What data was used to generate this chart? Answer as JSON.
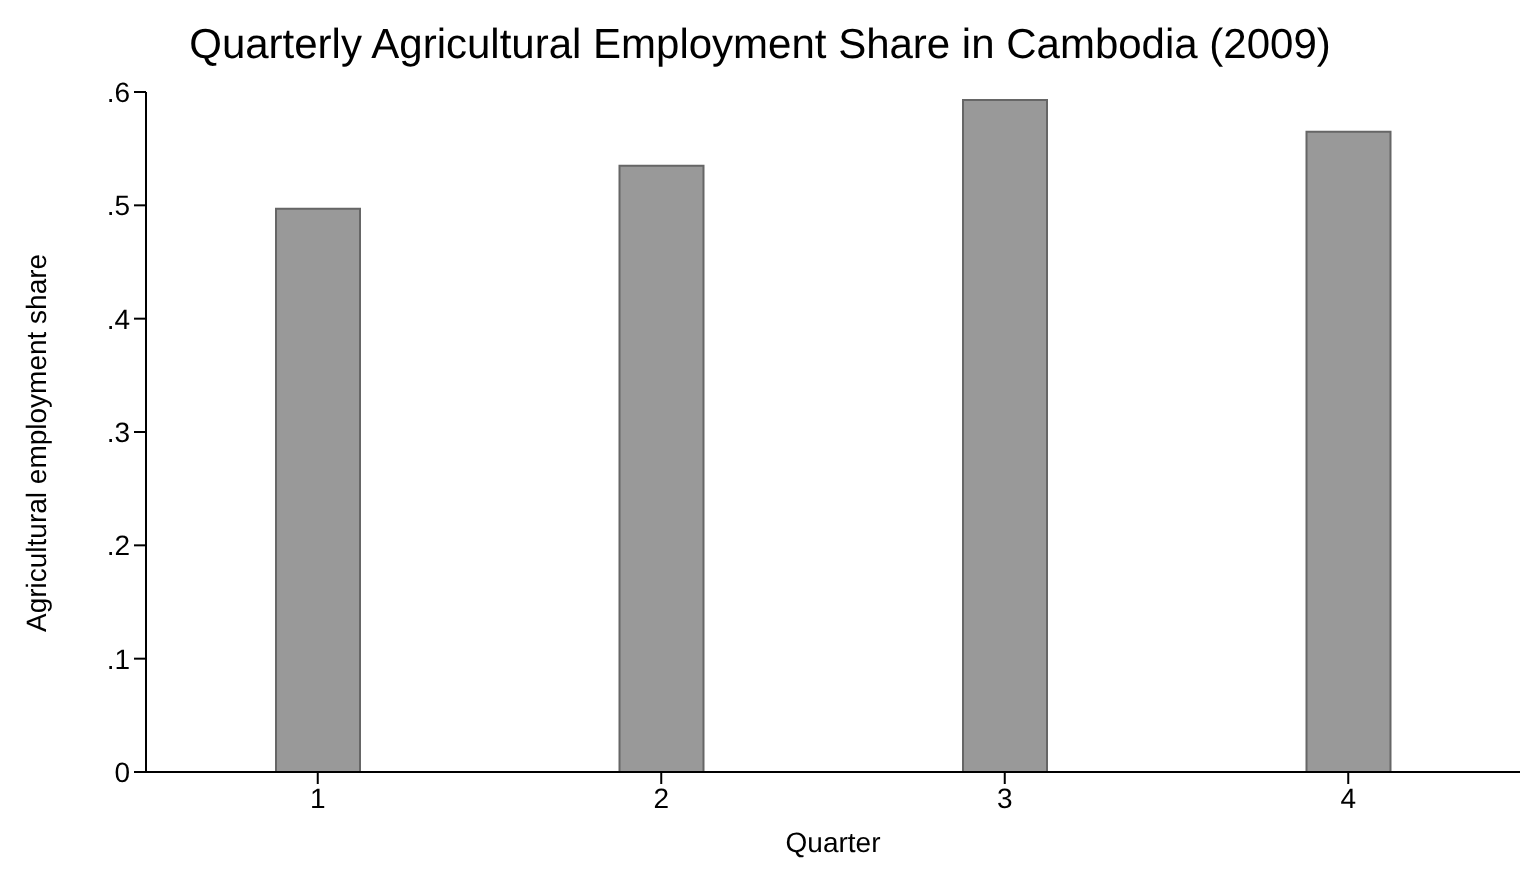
{
  "chart_data": {
    "type": "bar",
    "title": "Quarterly Agricultural Employment Share in Cambodia (2009)",
    "xlabel": "Quarter",
    "ylabel": "Agricultural employment share",
    "categories": [
      "1",
      "2",
      "3",
      "4"
    ],
    "values": [
      0.497,
      0.535,
      0.593,
      0.565
    ],
    "color": "#999999",
    "ylim": [
      0,
      0.6
    ],
    "yticks": [
      0,
      {
        "value": 0.1,
        "label": ".1"
      },
      {
        "value": 0.2,
        "label": ".2"
      },
      {
        "value": 0.3,
        "label": ".3"
      },
      {
        "value": 0.4,
        "label": ".4"
      },
      {
        "value": 0.5,
        "label": ".5"
      },
      {
        "value": 0.6,
        "label": ".6"
      }
    ],
    "grid": false,
    "legend": false
  }
}
